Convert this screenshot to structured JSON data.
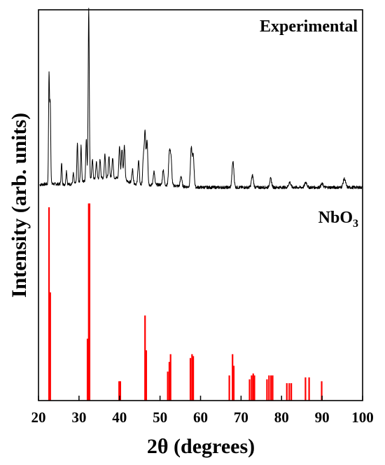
{
  "chart_data": {
    "type": "line",
    "xlabel": "2θ (degrees)",
    "ylabel": "Intensity (arb. units)",
    "xlim": [
      20,
      100
    ],
    "x_ticks": [
      20,
      30,
      40,
      50,
      60,
      70,
      80,
      90,
      100
    ],
    "grid": false,
    "legend": "none",
    "series": [
      {
        "name": "Experimental",
        "kind": "line",
        "color": "#000000",
        "peaks": [
          {
            "x": 22.6,
            "y": 0.64
          },
          {
            "x": 22.9,
            "y": 0.47
          },
          {
            "x": 25.7,
            "y": 0.12
          },
          {
            "x": 26.9,
            "y": 0.08
          },
          {
            "x": 28.6,
            "y": 0.06
          },
          {
            "x": 29.6,
            "y": 0.23
          },
          {
            "x": 30.5,
            "y": 0.21
          },
          {
            "x": 31.8,
            "y": 0.25
          },
          {
            "x": 32.4,
            "y": 1.0
          },
          {
            "x": 33.3,
            "y": 0.12
          },
          {
            "x": 34.3,
            "y": 0.1
          },
          {
            "x": 35.2,
            "y": 0.11
          },
          {
            "x": 36.4,
            "y": 0.14
          },
          {
            "x": 37.4,
            "y": 0.12
          },
          {
            "x": 38.3,
            "y": 0.12
          },
          {
            "x": 40.0,
            "y": 0.19
          },
          {
            "x": 40.6,
            "y": 0.18
          },
          {
            "x": 41.2,
            "y": 0.2
          },
          {
            "x": 43.2,
            "y": 0.08
          },
          {
            "x": 44.7,
            "y": 0.14
          },
          {
            "x": 45.9,
            "y": 0.16
          },
          {
            "x": 46.3,
            "y": 0.3
          },
          {
            "x": 46.8,
            "y": 0.26
          },
          {
            "x": 48.5,
            "y": 0.08
          },
          {
            "x": 50.8,
            "y": 0.09
          },
          {
            "x": 52.3,
            "y": 0.19
          },
          {
            "x": 52.7,
            "y": 0.16
          },
          {
            "x": 55.2,
            "y": 0.06
          },
          {
            "x": 57.7,
            "y": 0.22
          },
          {
            "x": 58.2,
            "y": 0.18
          },
          {
            "x": 68.0,
            "y": 0.15
          },
          {
            "x": 72.8,
            "y": 0.07
          },
          {
            "x": 77.3,
            "y": 0.05
          },
          {
            "x": 82.0,
            "y": 0.03
          },
          {
            "x": 86.0,
            "y": 0.03
          },
          {
            "x": 90.0,
            "y": 0.02
          },
          {
            "x": 95.5,
            "y": 0.05
          }
        ]
      },
      {
        "name": "NbO3",
        "kind": "stick",
        "color": "#ff0000",
        "sticks": [
          {
            "x": 22.6,
            "y": 1.0
          },
          {
            "x": 22.9,
            "y": 0.56
          },
          {
            "x": 32.1,
            "y": 0.32
          },
          {
            "x": 32.4,
            "y": 1.02
          },
          {
            "x": 32.6,
            "y": 1.02
          },
          {
            "x": 39.9,
            "y": 0.1
          },
          {
            "x": 40.2,
            "y": 0.1
          },
          {
            "x": 46.3,
            "y": 0.44
          },
          {
            "x": 46.6,
            "y": 0.26
          },
          {
            "x": 51.9,
            "y": 0.15
          },
          {
            "x": 52.3,
            "y": 0.2
          },
          {
            "x": 52.6,
            "y": 0.24
          },
          {
            "x": 57.5,
            "y": 0.22
          },
          {
            "x": 57.9,
            "y": 0.24
          },
          {
            "x": 58.2,
            "y": 0.23
          },
          {
            "x": 67.1,
            "y": 0.13
          },
          {
            "x": 67.9,
            "y": 0.24
          },
          {
            "x": 68.2,
            "y": 0.18
          },
          {
            "x": 72.1,
            "y": 0.11
          },
          {
            "x": 72.6,
            "y": 0.13
          },
          {
            "x": 73.0,
            "y": 0.14
          },
          {
            "x": 73.3,
            "y": 0.13
          },
          {
            "x": 76.4,
            "y": 0.11
          },
          {
            "x": 76.9,
            "y": 0.13
          },
          {
            "x": 77.4,
            "y": 0.13
          },
          {
            "x": 77.8,
            "y": 0.13
          },
          {
            "x": 81.3,
            "y": 0.09
          },
          {
            "x": 81.9,
            "y": 0.09
          },
          {
            "x": 82.4,
            "y": 0.09
          },
          {
            "x": 85.9,
            "y": 0.12
          },
          {
            "x": 86.8,
            "y": 0.12
          },
          {
            "x": 89.9,
            "y": 0.1
          }
        ]
      }
    ],
    "labels": {
      "experimental": "Experimental",
      "ref_main": "NbO",
      "ref_sub": "3"
    }
  }
}
